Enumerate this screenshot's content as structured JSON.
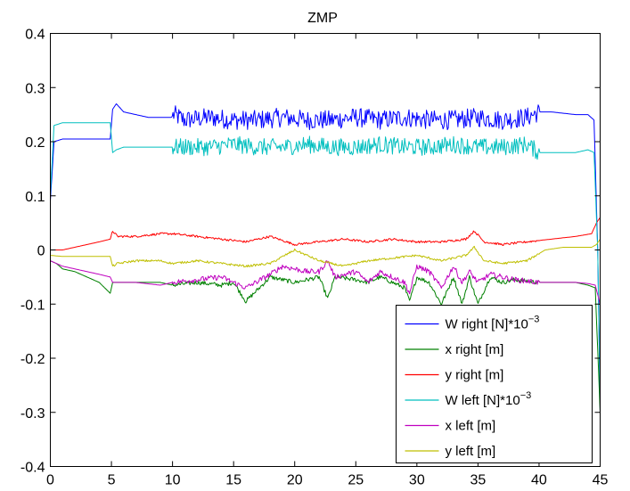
{
  "chart_data": {
    "type": "line",
    "title": "ZMP",
    "xlabel": "",
    "ylabel": "",
    "xlim": [
      0,
      45
    ],
    "ylim": [
      -0.4,
      0.4
    ],
    "xticks": [
      "0",
      "5",
      "10",
      "15",
      "20",
      "25",
      "30",
      "35",
      "40",
      "45"
    ],
    "yticks": [
      "-0.4",
      "-0.3",
      "-0.2",
      "-0.1",
      "0",
      "0.1",
      "0.2",
      "0.3",
      "0.4"
    ],
    "grid": false,
    "legend_position": "bottom-right",
    "series": [
      {
        "name": "W right [N]*10",
        "name_exp": "−3",
        "color": "#0000ff",
        "noise": [
          [
            10,
            40,
            0.018
          ]
        ],
        "x": [
          0,
          0.3,
          1,
          2,
          3,
          4,
          4.9,
          5.1,
          5.4,
          6,
          7,
          8,
          9,
          9.9,
          10.1,
          11,
          13,
          15,
          17,
          19,
          21,
          23,
          25,
          27,
          29,
          31,
          33,
          35,
          37,
          39,
          40,
          41,
          43,
          44,
          44.5,
          44.8,
          45
        ],
        "y": [
          0.09,
          0.2,
          0.205,
          0.205,
          0.205,
          0.205,
          0.205,
          0.26,
          0.27,
          0.255,
          0.25,
          0.245,
          0.245,
          0.245,
          0.25,
          0.24,
          0.245,
          0.24,
          0.24,
          0.245,
          0.24,
          0.24,
          0.245,
          0.24,
          0.245,
          0.24,
          0.24,
          0.245,
          0.24,
          0.245,
          0.255,
          0.255,
          0.25,
          0.25,
          0.24,
          0.0,
          -0.3
        ]
      },
      {
        "name": "x right [m]",
        "color": "#008000",
        "noise": [
          [
            10,
            40,
            0.004
          ]
        ],
        "x": [
          0,
          0.5,
          1,
          2,
          3,
          4,
          4.9,
          5.1,
          5.5,
          7,
          9,
          10,
          12,
          14,
          15,
          16,
          18,
          19,
          20,
          22,
          22.7,
          23.3,
          25,
          26,
          27,
          28,
          29,
          29.4,
          30,
          31,
          32,
          33,
          33.7,
          34.3,
          35,
          36,
          37,
          38,
          40,
          41,
          43,
          44,
          44.6,
          45
        ],
        "y": [
          -0.02,
          -0.025,
          -0.035,
          -0.04,
          -0.05,
          -0.06,
          -0.08,
          -0.06,
          -0.06,
          -0.06,
          -0.06,
          -0.065,
          -0.06,
          -0.065,
          -0.06,
          -0.095,
          -0.05,
          -0.055,
          -0.06,
          -0.05,
          -0.09,
          -0.05,
          -0.055,
          -0.06,
          -0.05,
          -0.06,
          -0.07,
          -0.095,
          -0.05,
          -0.06,
          -0.1,
          -0.05,
          -0.1,
          -0.05,
          -0.1,
          -0.05,
          -0.06,
          -0.055,
          -0.06,
          -0.06,
          -0.06,
          -0.065,
          -0.07,
          -0.3
        ]
      },
      {
        "name": "y right [m]",
        "color": "#ff0000",
        "noise": [
          [
            5,
            40,
            0.002
          ]
        ],
        "x": [
          0,
          1,
          2,
          3,
          4,
          4.9,
          5.1,
          5.5,
          7,
          9,
          10,
          12,
          14,
          16,
          18,
          20,
          22,
          24,
          26,
          28,
          30,
          32,
          34,
          34.7,
          35.5,
          37,
          39,
          41,
          43,
          44.3,
          44.7,
          45
        ],
        "y": [
          0,
          0,
          0.005,
          0.01,
          0.015,
          0.02,
          0.035,
          0.025,
          0.025,
          0.03,
          0.03,
          0.025,
          0.02,
          0.015,
          0.025,
          0.01,
          0.015,
          0.02,
          0.015,
          0.02,
          0.015,
          0.015,
          0.02,
          0.035,
          0.015,
          0.01,
          0.015,
          0.02,
          0.025,
          0.03,
          0.05,
          0.06
        ]
      },
      {
        "name": "W left [N]*10",
        "name_exp": "−3",
        "color": "#00bfbf",
        "noise": [
          [
            10,
            40,
            0.016
          ]
        ],
        "x": [
          0,
          0.3,
          1,
          2,
          3,
          4,
          4.9,
          5.1,
          5.4,
          6,
          7,
          8,
          9,
          9.9,
          10.1,
          11,
          13,
          15,
          17,
          19,
          21,
          23,
          25,
          27,
          29,
          31,
          33,
          35,
          37,
          39,
          40,
          41,
          43,
          44,
          44.5,
          44.8,
          45
        ],
        "y": [
          0.1,
          0.23,
          0.235,
          0.235,
          0.235,
          0.235,
          0.235,
          0.18,
          0.185,
          0.19,
          0.19,
          0.19,
          0.19,
          0.19,
          0.19,
          0.19,
          0.19,
          0.195,
          0.19,
          0.19,
          0.195,
          0.19,
          0.19,
          0.195,
          0.19,
          0.19,
          0.195,
          0.19,
          0.19,
          0.195,
          0.18,
          0.18,
          0.18,
          0.185,
          0.18,
          0.0,
          -0.28
        ]
      },
      {
        "name": "x left [m]",
        "color": "#bf00bf",
        "noise": [
          [
            10,
            40,
            0.005
          ]
        ],
        "x": [
          0,
          0.5,
          1,
          2,
          3,
          4,
          4.9,
          5.1,
          5.5,
          7,
          9,
          10,
          12,
          14,
          15,
          16,
          18,
          19,
          20,
          21,
          22,
          22.7,
          23.3,
          25,
          26,
          27,
          28,
          29,
          29.4,
          30,
          31,
          32,
          33,
          33.7,
          34.3,
          35,
          36,
          37,
          38,
          40,
          41,
          43,
          44,
          44.6,
          45
        ],
        "y": [
          -0.02,
          -0.025,
          -0.03,
          -0.035,
          -0.04,
          -0.045,
          -0.05,
          -0.06,
          -0.06,
          -0.06,
          -0.065,
          -0.06,
          -0.055,
          -0.05,
          -0.06,
          -0.07,
          -0.045,
          -0.03,
          -0.035,
          -0.04,
          -0.04,
          -0.02,
          -0.05,
          -0.04,
          -0.06,
          -0.04,
          -0.05,
          -0.06,
          -0.08,
          -0.03,
          -0.04,
          -0.07,
          -0.03,
          -0.06,
          -0.04,
          -0.06,
          -0.045,
          -0.05,
          -0.055,
          -0.06,
          -0.06,
          -0.06,
          -0.062,
          -0.065,
          -0.1
        ]
      },
      {
        "name": "y left [m]",
        "color": "#bfbf00",
        "noise": [
          [
            5,
            40,
            0.002
          ]
        ],
        "x": [
          0,
          1,
          2,
          3,
          4,
          4.9,
          5.1,
          5.5,
          7,
          9,
          10,
          12,
          14,
          16,
          18,
          20,
          22,
          24,
          26,
          28,
          30,
          32,
          34,
          34.7,
          35.5,
          37,
          39,
          40.5,
          42,
          43,
          44.3,
          44.7,
          45
        ],
        "y": [
          -0.01,
          -0.012,
          -0.012,
          -0.012,
          -0.012,
          -0.012,
          -0.03,
          -0.025,
          -0.02,
          -0.02,
          -0.025,
          -0.02,
          -0.025,
          -0.03,
          -0.025,
          0.0,
          -0.02,
          -0.03,
          -0.02,
          -0.015,
          -0.01,
          -0.02,
          -0.01,
          0.005,
          -0.02,
          -0.025,
          -0.02,
          0.0,
          0.005,
          0.005,
          0.005,
          0.01,
          0.02
        ]
      }
    ]
  }
}
